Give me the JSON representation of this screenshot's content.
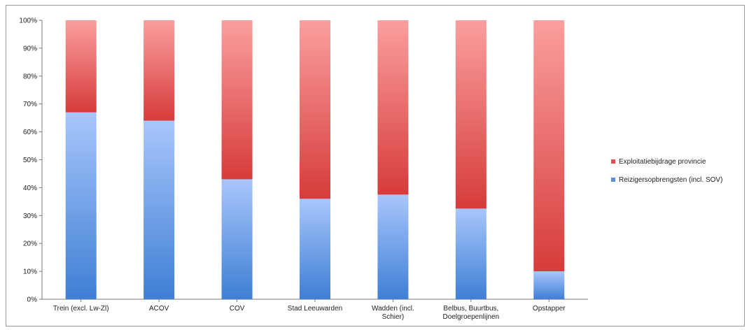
{
  "chart_data": {
    "type": "bar",
    "stacked": true,
    "normalized": true,
    "categories": [
      [
        "Trein (excl. Lw-Zl)"
      ],
      [
        "ACOV"
      ],
      [
        "COV"
      ],
      [
        "Stad Leeuwarden"
      ],
      [
        "Wadden (incl.",
        "Schier)"
      ],
      [
        "Belbus, Buurtbus,",
        "Doelgroepenlijnen"
      ],
      [
        "Opstapper"
      ]
    ],
    "series": [
      {
        "name": "Reizigersopbrengsten (incl. SOV)",
        "color": "#5b8fe0",
        "values": [
          67,
          64,
          43,
          36,
          37.5,
          32.5,
          10
        ]
      },
      {
        "name": "Exploitatiebijdrage provincie",
        "color": "#e0504f",
        "values": [
          33,
          36,
          57,
          64,
          62.5,
          67.5,
          90
        ]
      }
    ],
    "yticks": [
      "0%",
      "10%",
      "20%",
      "30%",
      "40%",
      "50%",
      "60%",
      "70%",
      "80%",
      "90%",
      "100%"
    ],
    "ylim": [
      0,
      100
    ],
    "grid": false,
    "legend_position": "right"
  }
}
